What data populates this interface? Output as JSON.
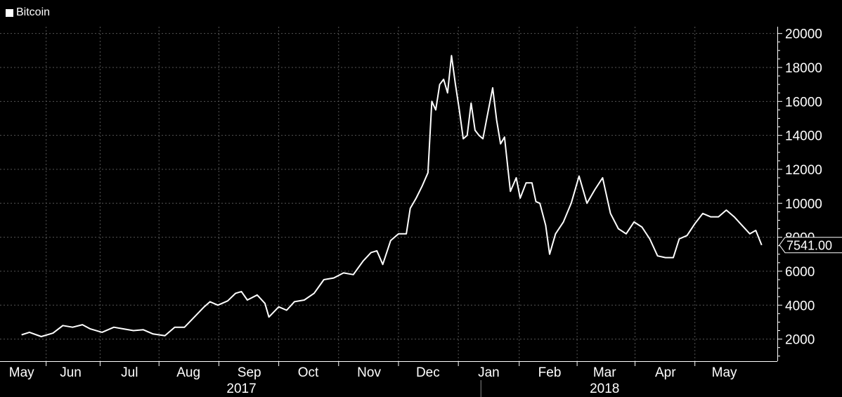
{
  "chart_data": {
    "type": "line",
    "title": "",
    "legend": {
      "placement": "top-left"
    },
    "series": [
      {
        "name": "Bitcoin",
        "color": "#ffffff",
        "points": [
          [
            "2017-05-12",
            2250
          ],
          [
            "2017-05-16",
            2400
          ],
          [
            "2017-05-22",
            2150
          ],
          [
            "2017-05-28",
            2350
          ],
          [
            "2017-06-02",
            2800
          ],
          [
            "2017-06-07",
            2700
          ],
          [
            "2017-06-12",
            2850
          ],
          [
            "2017-06-16",
            2600
          ],
          [
            "2017-06-22",
            2400
          ],
          [
            "2017-06-28",
            2700
          ],
          [
            "2017-07-03",
            2600
          ],
          [
            "2017-07-08",
            2500
          ],
          [
            "2017-07-13",
            2550
          ],
          [
            "2017-07-18",
            2300
          ],
          [
            "2017-07-24",
            2200
          ],
          [
            "2017-07-29",
            2700
          ],
          [
            "2017-08-03",
            2700
          ],
          [
            "2017-08-08",
            3300
          ],
          [
            "2017-08-13",
            3900
          ],
          [
            "2017-08-16",
            4200
          ],
          [
            "2017-08-20",
            4000
          ],
          [
            "2017-08-25",
            4250
          ],
          [
            "2017-08-29",
            4700
          ],
          [
            "2017-09-01",
            4800
          ],
          [
            "2017-09-04",
            4300
          ],
          [
            "2017-09-09",
            4600
          ],
          [
            "2017-09-13",
            4100
          ],
          [
            "2017-09-15",
            3300
          ],
          [
            "2017-09-20",
            3900
          ],
          [
            "2017-09-24",
            3700
          ],
          [
            "2017-09-28",
            4200
          ],
          [
            "2017-10-03",
            4300
          ],
          [
            "2017-10-08",
            4700
          ],
          [
            "2017-10-13",
            5500
          ],
          [
            "2017-10-18",
            5600
          ],
          [
            "2017-10-23",
            5900
          ],
          [
            "2017-10-28",
            5800
          ],
          [
            "2017-11-02",
            6600
          ],
          [
            "2017-11-06",
            7100
          ],
          [
            "2017-11-09",
            7200
          ],
          [
            "2017-11-12",
            6400
          ],
          [
            "2017-11-16",
            7800
          ],
          [
            "2017-11-20",
            8200
          ],
          [
            "2017-11-24",
            8200
          ],
          [
            "2017-11-26",
            9700
          ],
          [
            "2017-11-29",
            10300
          ],
          [
            "2017-12-02",
            11000
          ],
          [
            "2017-12-05",
            11800
          ],
          [
            "2017-12-07",
            16000
          ],
          [
            "2017-12-09",
            15500
          ],
          [
            "2017-12-11",
            17000
          ],
          [
            "2017-12-13",
            17300
          ],
          [
            "2017-12-15",
            16500
          ],
          [
            "2017-12-17",
            18700
          ],
          [
            "2017-12-19",
            17000
          ],
          [
            "2017-12-21",
            15500
          ],
          [
            "2017-12-23",
            13800
          ],
          [
            "2017-12-25",
            14000
          ],
          [
            "2017-12-27",
            15900
          ],
          [
            "2017-12-29",
            14300
          ],
          [
            "2017-12-31",
            14000
          ],
          [
            "2018-01-02",
            13800
          ],
          [
            "2018-01-04",
            15000
          ],
          [
            "2018-01-07",
            16800
          ],
          [
            "2018-01-09",
            14900
          ],
          [
            "2018-01-11",
            13500
          ],
          [
            "2018-01-13",
            13900
          ],
          [
            "2018-01-16",
            10700
          ],
          [
            "2018-01-19",
            11500
          ],
          [
            "2018-01-21",
            10300
          ],
          [
            "2018-01-24",
            11200
          ],
          [
            "2018-01-27",
            11200
          ],
          [
            "2018-01-29",
            10100
          ],
          [
            "2018-01-31",
            10000
          ],
          [
            "2018-02-03",
            8700
          ],
          [
            "2018-02-05",
            7000
          ],
          [
            "2018-02-08",
            8200
          ],
          [
            "2018-02-12",
            8900
          ],
          [
            "2018-02-16",
            10000
          ],
          [
            "2018-02-20",
            11600
          ],
          [
            "2018-02-24",
            10000
          ],
          [
            "2018-02-28",
            10800
          ],
          [
            "2018-03-04",
            11500
          ],
          [
            "2018-03-08",
            9400
          ],
          [
            "2018-03-12",
            8500
          ],
          [
            "2018-03-16",
            8200
          ],
          [
            "2018-03-20",
            8900
          ],
          [
            "2018-03-24",
            8600
          ],
          [
            "2018-03-28",
            7900
          ],
          [
            "2018-04-01",
            6900
          ],
          [
            "2018-04-05",
            6800
          ],
          [
            "2018-04-09",
            6800
          ],
          [
            "2018-04-12",
            7900
          ],
          [
            "2018-04-16",
            8100
          ],
          [
            "2018-04-20",
            8800
          ],
          [
            "2018-04-24",
            9400
          ],
          [
            "2018-04-28",
            9200
          ],
          [
            "2018-05-02",
            9200
          ],
          [
            "2018-05-06",
            9600
          ],
          [
            "2018-05-10",
            9200
          ],
          [
            "2018-05-14",
            8700
          ],
          [
            "2018-05-18",
            8200
          ],
          [
            "2018-05-21",
            8400
          ],
          [
            "2018-05-24",
            7541
          ]
        ]
      }
    ],
    "last_value_label": "7541.00",
    "y_axis": {
      "side": "right",
      "range": [
        700,
        20400
      ],
      "ticks": [
        2000,
        4000,
        6000,
        8000,
        10000,
        12000,
        14000,
        16000,
        18000,
        20000
      ]
    },
    "x_axis": {
      "range": [
        "2017-05-01",
        "2018-06-01"
      ],
      "month_ticks": [
        {
          "label": "May",
          "date": "2017-05-12"
        },
        {
          "label": "Jun",
          "date": "2017-06-06"
        },
        {
          "label": "Jul",
          "date": "2017-07-06"
        },
        {
          "label": "Aug",
          "date": "2017-08-05"
        },
        {
          "label": "Sep",
          "date": "2017-09-05"
        },
        {
          "label": "Oct",
          "date": "2017-10-05"
        },
        {
          "label": "Nov",
          "date": "2017-11-05"
        },
        {
          "label": "Dec",
          "date": "2017-12-05"
        },
        {
          "label": "Jan",
          "date": "2018-01-05"
        },
        {
          "label": "Feb",
          "date": "2018-02-05"
        },
        {
          "label": "Mar",
          "date": "2018-03-05"
        },
        {
          "label": "Apr",
          "date": "2018-04-05"
        },
        {
          "label": "May",
          "date": "2018-05-05"
        }
      ],
      "year_labels": [
        {
          "label": "2017",
          "center": "2017-09-01"
        },
        {
          "label": "2018",
          "center": "2018-03-05"
        }
      ],
      "year_divider": "2018-01-01"
    },
    "grid": true,
    "colors": {
      "background": "#000000",
      "line": "#ffffff",
      "grid": "#555555"
    }
  }
}
